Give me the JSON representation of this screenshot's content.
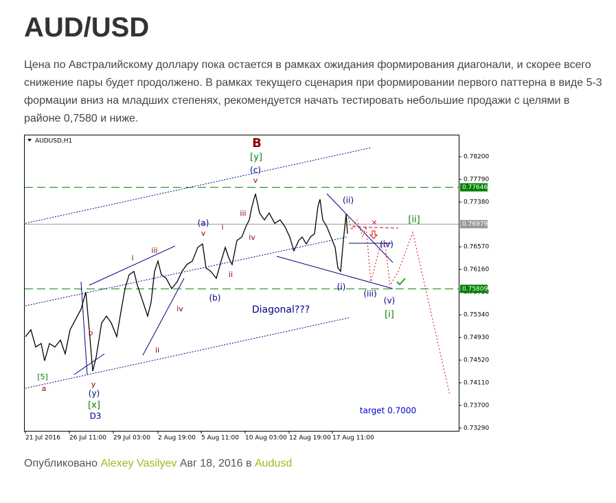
{
  "header": {
    "title": "AUD/USD"
  },
  "body": {
    "paragraph": "Цена по Австралийскому доллару пока остается в рамках ожидания формирования диагонали, и скорее всего снижение пары будет продолжено. В рамках текущего сценария при формировании первого паттерна в виде 5-3 формации вниз на младших степенях, рекомендуется начать тестировать небольшие продажи с целями в районе 0,7580 и ниже."
  },
  "chart_data": {
    "type": "line",
    "series": [
      {
        "name": "AUDUSD,H1",
        "color": "#000000",
        "x": [
          2,
          10,
          17,
          25,
          30,
          37,
          45,
          53,
          60,
          67,
          75,
          83,
          90,
          95,
          100,
          105,
          113,
          120,
          127,
          135,
          140,
          147,
          153,
          160,
          165,
          170,
          175,
          180,
          185,
          190,
          195,
          200,
          207,
          215,
          223,
          230,
          237,
          245,
          253,
          260,
          265,
          272,
          280,
          287,
          293,
          298,
          303,
          310,
          317,
          323,
          328,
          332,
          337,
          343,
          350,
          357,
          365,
          373,
          380,
          387,
          393,
          400,
          405,
          411,
          417,
          423,
          428,
          431,
          435,
          441,
          447,
          453,
          457,
          461,
          465,
          469,
          471
        ],
        "values": [
          0.74943,
          0.75068,
          0.74757,
          0.74819,
          0.74508,
          0.74819,
          0.74757,
          0.74881,
          0.74633,
          0.75068,
          0.75254,
          0.75441,
          0.75751,
          0.75068,
          0.74322,
          0.7457,
          0.75192,
          0.75316,
          0.75192,
          0.74943,
          0.75316,
          0.75813,
          0.76062,
          0.76124,
          0.75876,
          0.75689,
          0.75503,
          0.75316,
          0.75565,
          0.76124,
          0.76311,
          0.76062,
          0.76,
          0.75813,
          0.75938,
          0.76124,
          0.76248,
          0.76311,
          0.76559,
          0.76621,
          0.76186,
          0.76124,
          0.76,
          0.76311,
          0.76559,
          0.76373,
          0.76248,
          0.76684,
          0.76746,
          0.76932,
          0.77056,
          0.77305,
          0.77529,
          0.77181,
          0.77056,
          0.77181,
          0.76994,
          0.77056,
          0.76932,
          0.76746,
          0.76497,
          0.76684,
          0.76746,
          0.76621,
          0.76746,
          0.76808,
          0.77305,
          0.77429,
          0.77056,
          0.76932,
          0.76746,
          0.76559,
          0.76186,
          0.76124,
          0.76684,
          0.77156,
          0.76808
        ]
      }
    ],
    "xlim": [
      0,
      633
    ],
    "xticks": [
      {
        "value": 2,
        "label": "21 Jul 2016"
      },
      {
        "value": 66,
        "label": "26 Jul 11:00"
      },
      {
        "value": 130,
        "label": "29 Jul 03:00"
      },
      {
        "value": 195,
        "label": "2 Aug 19:00"
      },
      {
        "value": 258,
        "label": "5 Aug 11:00"
      },
      {
        "value": 322,
        "label": "10 Aug 03:00"
      },
      {
        "value": 386,
        "label": "12 Aug 19:00"
      },
      {
        "value": 449,
        "label": "17 Aug 11:00"
      }
    ],
    "ylim": [
      0.7324,
      0.78598
    ],
    "yticks": [
      {
        "value": 0.782,
        "label": "0.78200"
      },
      {
        "value": 0.7779,
        "label": "0.77790"
      },
      {
        "value": 0.7738,
        "label": "0.77380"
      },
      {
        "value": 0.7657,
        "label": "0.76570"
      },
      {
        "value": 0.7616,
        "label": "0.76160"
      },
      {
        "value": 0.7575,
        "label": "0.75750"
      },
      {
        "value": 0.7534,
        "label": "0.75340"
      },
      {
        "value": 0.7493,
        "label": "0.74930"
      },
      {
        "value": 0.7452,
        "label": "0.74520"
      },
      {
        "value": 0.7411,
        "label": "0.74110"
      },
      {
        "value": 0.737,
        "label": "0.73700"
      },
      {
        "value": 0.7329,
        "label": "0.73290"
      }
    ],
    "levels": [
      {
        "value": 0.77646,
        "color": "#008000",
        "style": "dashed"
      },
      {
        "value": 0.76979,
        "color": "#999999",
        "style": "solid"
      },
      {
        "value": 0.75809,
        "color": "#008000",
        "style": "dashed"
      }
    ],
    "annotations": [
      {
        "text": "B",
        "color": "#8b0000"
      },
      {
        "text": "[y]",
        "color": "#008000"
      },
      {
        "text": "(c)",
        "color": "#000080"
      },
      {
        "text": "v",
        "color": "#8b0000"
      },
      {
        "text": "(ii)",
        "color": "#000080"
      },
      {
        "text": "[ii]",
        "color": "#008000"
      },
      {
        "text": "iii",
        "color": "#8b0000"
      },
      {
        "text": "i",
        "color": "#8b0000"
      },
      {
        "text": "(a)",
        "color": "#000080"
      },
      {
        "text": "v",
        "color": "#8b0000"
      },
      {
        "text": "iv",
        "color": "#8b0000"
      },
      {
        "text": "(iv)",
        "color": "#000080"
      },
      {
        "text": "iii",
        "color": "#8b0000"
      },
      {
        "text": "i",
        "color": "#8b0000"
      },
      {
        "text": "ii",
        "color": "#8b0000"
      },
      {
        "text": "(i)",
        "color": "#000080"
      },
      {
        "text": "(iii)",
        "color": "#000080"
      },
      {
        "text": "(b)",
        "color": "#000080"
      },
      {
        "text": "(v)",
        "color": "#000080"
      },
      {
        "text": "Diagonal???",
        "color": "#000080"
      },
      {
        "text": "iv",
        "color": "#8b0000"
      },
      {
        "text": "[i]",
        "color": "#008000"
      },
      {
        "text": "b",
        "color": "#8b0000"
      },
      {
        "text": "ii",
        "color": "#8b0000"
      },
      {
        "text": "[5]",
        "color": "#008000"
      },
      {
        "text": "y",
        "color": "#8b0000"
      },
      {
        "text": "a",
        "color": "#8b0000"
      },
      {
        "text": "(y)",
        "color": "#000080"
      },
      {
        "text": "[x]",
        "color": "#008000"
      },
      {
        "text": "D3",
        "color": "#000080"
      },
      {
        "text": "target  0.7000",
        "color": "#0000cd"
      }
    ]
  },
  "footer": {
    "prefix": "Опубликовано",
    "author": "Alexey Vasilyev",
    "date": "Авг 18, 2016",
    "in": "в",
    "category": "Audusd"
  }
}
